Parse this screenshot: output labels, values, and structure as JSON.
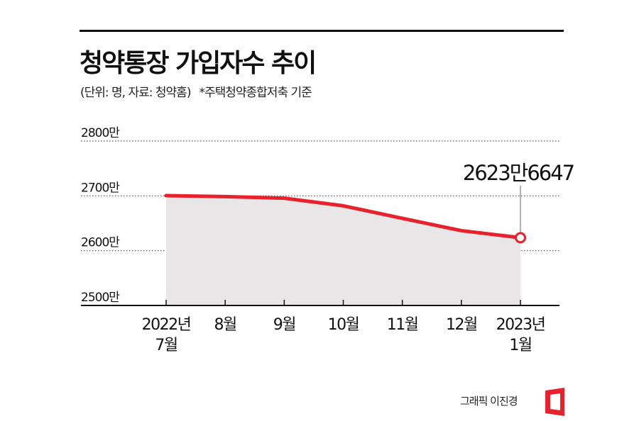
{
  "header": {
    "title": "청약통장 가입자수 추이",
    "unit_source": "(단위: 명, 자료: 청약홈)",
    "note": "*주택청약종합저축 기준"
  },
  "chart_data": {
    "type": "area",
    "x": [
      "2022년 7월",
      "8월",
      "9월",
      "10월",
      "11월",
      "12월",
      "2023년 1월"
    ],
    "x_tick_labels": [
      [
        "2022년",
        "7월"
      ],
      [
        "8월"
      ],
      [
        "9월"
      ],
      [
        "10월"
      ],
      [
        "11월"
      ],
      [
        "12월"
      ],
      [
        "2023년",
        "1월"
      ]
    ],
    "series": [
      {
        "values": [
          27004000,
          26986000,
          26957000,
          26818000,
          26590000,
          26365000,
          26236647
        ]
      }
    ],
    "y_ticks": [
      25000000,
      26000000,
      27000000,
      28000000
    ],
    "y_tick_labels": [
      "2500만",
      "2600만",
      "2700만",
      "2800만"
    ],
    "ylim": [
      25000000,
      28000000
    ],
    "annotation": {
      "text": "2623만6647",
      "index": 6
    },
    "grid": "dotted horizontal",
    "colors": {
      "line": "#e8212c",
      "area": "#e8e6e7",
      "grid": "#555555",
      "axis": "#111111"
    }
  },
  "footer": {
    "credit": "그래픽 이진경",
    "logo_color": "#e8212c"
  }
}
